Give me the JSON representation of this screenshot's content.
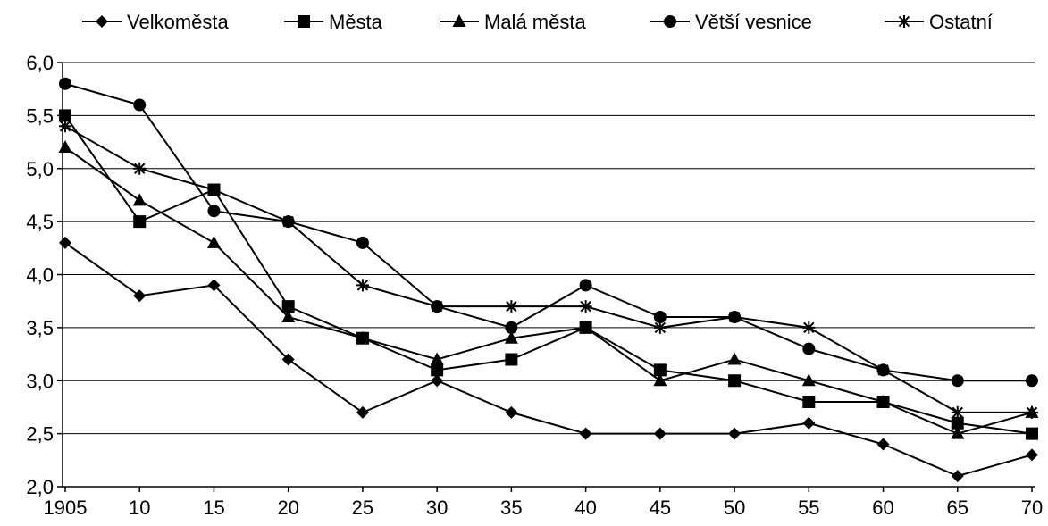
{
  "chart_data": {
    "type": "line",
    "title": "",
    "xlabel": "",
    "ylabel": "",
    "x": [
      "1905",
      "10",
      "15",
      "20",
      "25",
      "30",
      "35",
      "40",
      "45",
      "50",
      "55",
      "60",
      "65",
      "70"
    ],
    "ylim": [
      2.0,
      6.0
    ],
    "yticks": [
      "2,0",
      "2,5",
      "3,0",
      "3,5",
      "4,0",
      "4,5",
      "5,0",
      "5,5",
      "6,0"
    ],
    "grid": "horizontal",
    "legend_position": "top",
    "series": [
      {
        "name": "Velkoměsta",
        "marker": "diamond",
        "values": [
          4.3,
          3.8,
          3.9,
          3.2,
          2.7,
          3.0,
          2.7,
          2.5,
          2.5,
          2.5,
          2.6,
          2.4,
          2.1,
          2.3
        ]
      },
      {
        "name": "Města",
        "marker": "square",
        "values": [
          5.5,
          4.5,
          4.8,
          3.7,
          3.4,
          3.1,
          3.2,
          3.5,
          3.1,
          3.0,
          2.8,
          2.8,
          2.6,
          2.5
        ]
      },
      {
        "name": "Malá města",
        "marker": "triangle",
        "values": [
          5.2,
          4.7,
          4.3,
          3.6,
          3.4,
          3.2,
          3.4,
          3.5,
          3.0,
          3.2,
          3.0,
          2.8,
          2.5,
          2.7
        ]
      },
      {
        "name": "Větší vesnice",
        "marker": "circle",
        "values": [
          5.8,
          5.6,
          4.6,
          4.5,
          4.3,
          3.7,
          3.5,
          3.9,
          3.6,
          3.6,
          3.3,
          3.1,
          3.0,
          3.0
        ]
      },
      {
        "name": "Ostatní",
        "marker": "star",
        "values": [
          5.4,
          5.0,
          4.8,
          4.5,
          3.9,
          3.7,
          3.7,
          3.7,
          3.5,
          3.6,
          3.5,
          3.1,
          2.7,
          2.7
        ]
      }
    ]
  }
}
